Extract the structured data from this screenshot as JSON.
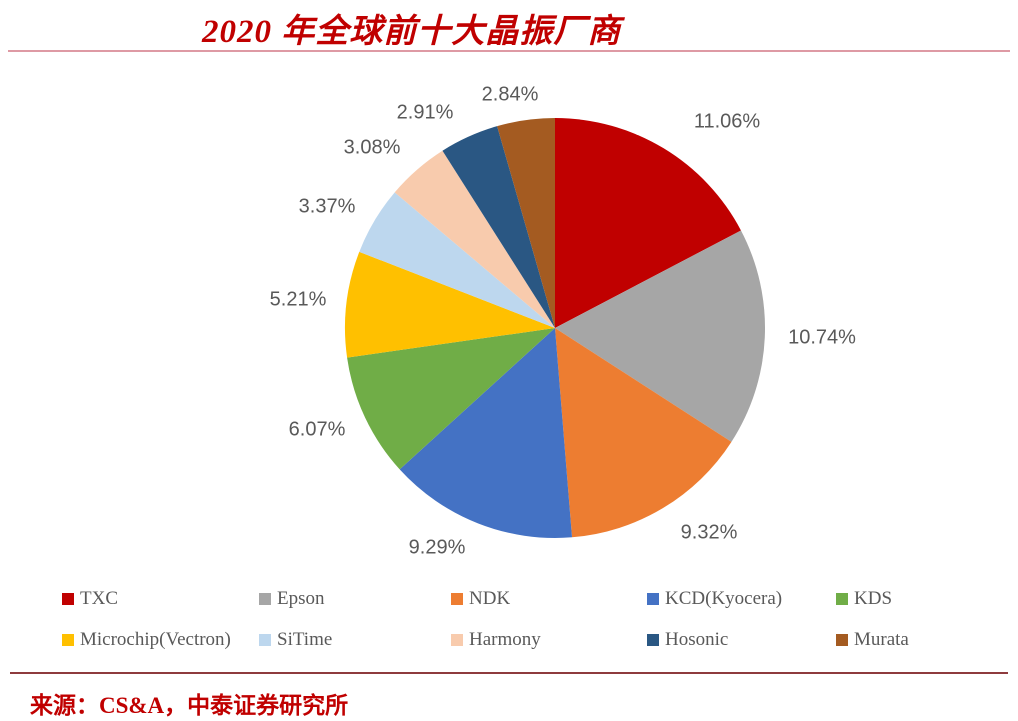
{
  "page": {
    "title": "2020 年全球前十大晶振厂商",
    "source_note": "来源：CS&A，中泰证券研究所"
  },
  "chart_data": {
    "type": "pie",
    "title": "2020 年全球前十大晶振厂商",
    "unit": "%",
    "start_angle_deg": 0,
    "direction": "clockwise",
    "slices_normalized_to_sum": true,
    "legend_position": "bottom",
    "legend_rows": 2,
    "series": [
      {
        "name": "TXC",
        "value": 11.06,
        "label": "11.06%",
        "color": "#C00000"
      },
      {
        "name": "Epson",
        "value": 10.74,
        "label": "10.74%",
        "color": "#A6A6A6"
      },
      {
        "name": "NDK",
        "value": 9.32,
        "label": "9.32%",
        "color": "#ED7D31"
      },
      {
        "name": "KCD(Kyocera)",
        "value": 9.29,
        "label": "9.29%",
        "color": "#4472C4"
      },
      {
        "name": "KDS",
        "value": 6.07,
        "label": "6.07%",
        "color": "#70AD47"
      },
      {
        "name": "Microchip(Vectron)",
        "value": 5.21,
        "label": "5.21%",
        "color": "#FFC000"
      },
      {
        "name": "SiTime",
        "value": 3.37,
        "label": "3.37%",
        "color": "#BDD7EE"
      },
      {
        "name": "Harmony",
        "value": 3.08,
        "label": "3.08%",
        "color": "#F8CBAD"
      },
      {
        "name": "Hosonic",
        "value": 2.91,
        "label": "2.91%",
        "color": "#2A5783"
      },
      {
        "name": "Murata",
        "value": 2.84,
        "label": "2.84%",
        "color": "#A45B21"
      }
    ]
  },
  "colors": {
    "background": "#FFFFFF",
    "title_text": "#C00000",
    "title_rule": "#DE9AA4",
    "footer_rule": "#8E3B3E",
    "data_label_text": "#595959",
    "legend_text": "#595959",
    "source_text": "#C00000"
  }
}
